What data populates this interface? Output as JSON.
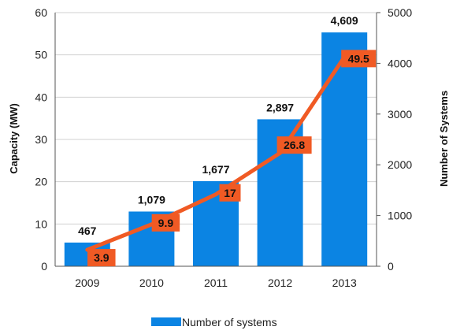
{
  "chart_data": {
    "type": "bar",
    "categories": [
      "2009",
      "2010",
      "2011",
      "2012",
      "2013"
    ],
    "series": [
      {
        "name": "Number of systems",
        "type": "bar",
        "axis": "right",
        "values": [
          467,
          1079,
          1677,
          2897,
          4609
        ],
        "labels": [
          "467",
          "1,079",
          "1,677",
          "2,897",
          "4,609"
        ],
        "color": "#0b84e3"
      },
      {
        "type": "line",
        "axis": "left",
        "values": [
          3.9,
          9.9,
          17,
          26.8,
          49.5
        ],
        "labels": [
          "3.9",
          "9.9",
          "17",
          "26.8",
          "49.5"
        ],
        "color": "#f05a24"
      }
    ],
    "ylabel": "Capacity (MW)",
    "y2label": "Number of Systems",
    "ylim": [
      0,
      60
    ],
    "y2lim": [
      0,
      5000
    ],
    "yticks": [
      "0",
      "10",
      "20",
      "30",
      "40",
      "50",
      "60"
    ],
    "y2ticks": [
      "0",
      "1000",
      "2000",
      "3000",
      "4000",
      "5000"
    ],
    "grid": true,
    "legend": "bottom-center"
  }
}
